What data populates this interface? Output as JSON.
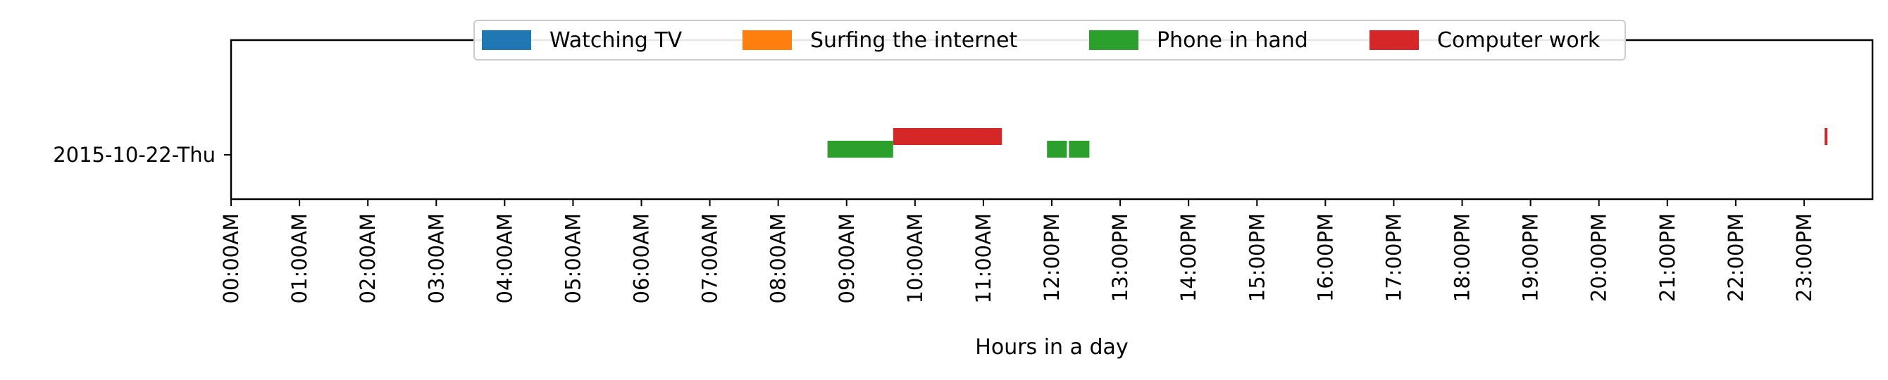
{
  "chart_data": {
    "type": "broken_barh",
    "title": "",
    "xlabel": "Hours in a day",
    "ylabel": "",
    "xlim": [
      0,
      24
    ],
    "categories": [
      "2015-10-22-Thu"
    ],
    "xtick_labels": [
      "00:00AM",
      "01:00AM",
      "02:00AM",
      "03:00AM",
      "04:00AM",
      "05:00AM",
      "06:00AM",
      "07:00AM",
      "08:00AM",
      "09:00AM",
      "10:00AM",
      "11:00AM",
      "12:00PM",
      "13:00PM",
      "14:00PM",
      "15:00PM",
      "16:00PM",
      "17:00PM",
      "18:00PM",
      "19:00PM",
      "20:00PM",
      "21:00PM",
      "22:00PM",
      "23:00PM"
    ],
    "legend_position": "top-center",
    "grid": false,
    "series": [
      {
        "name": "Watching TV",
        "color": "#1f77b4",
        "segments": []
      },
      {
        "name": "Surfing the internet",
        "color": "#ff7f0e",
        "segments": []
      },
      {
        "name": "Phone in hand",
        "color": "#2ca02c",
        "lane": "lower",
        "segments": [
          {
            "category": "2015-10-22-Thu",
            "start": 8.72,
            "end": 9.68
          },
          {
            "category": "2015-10-22-Thu",
            "start": 11.93,
            "end": 12.22
          },
          {
            "category": "2015-10-22-Thu",
            "start": 12.25,
            "end": 12.55
          }
        ]
      },
      {
        "name": "Computer work",
        "color": "#d62728",
        "lane": "upper",
        "segments": [
          {
            "category": "2015-10-22-Thu",
            "start": 9.68,
            "end": 11.27
          },
          {
            "category": "2015-10-22-Thu",
            "start": 23.3,
            "end": 23.33
          }
        ]
      }
    ]
  }
}
